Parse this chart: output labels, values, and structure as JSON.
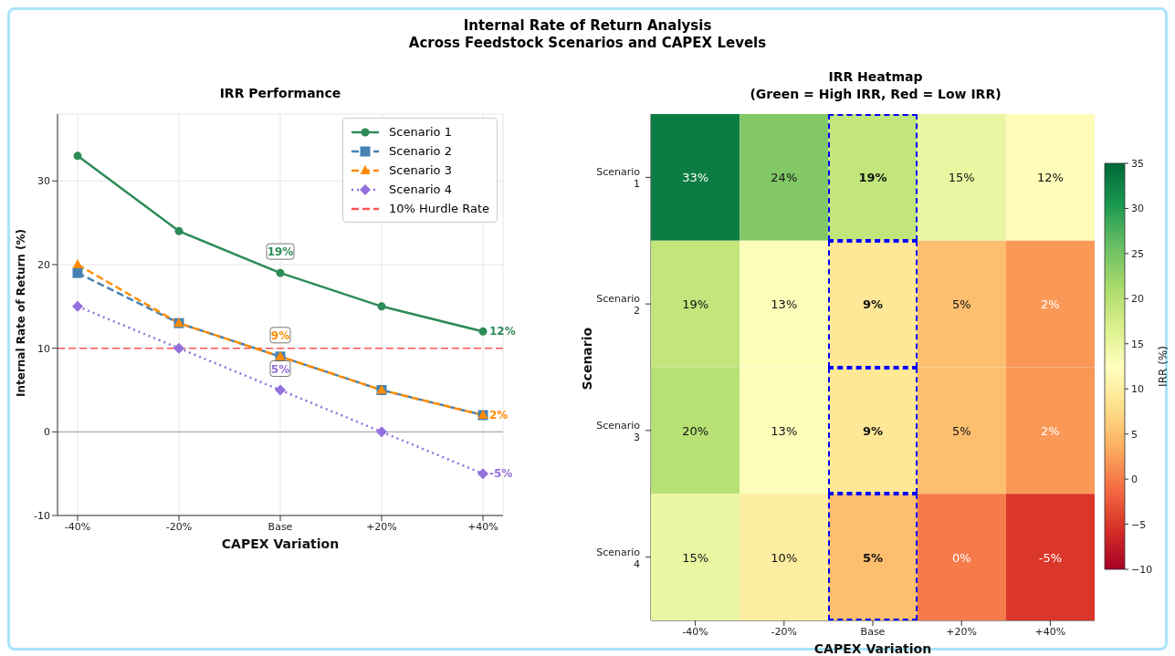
{
  "chart_data": [
    {
      "type": "line",
      "title": "IRR Performance",
      "annotations": [
        "Internal Rate of Return Analysis",
        "Across Feedstock Scenarios and CAPEX Levels"
      ],
      "xlabel": "CAPEX Variation",
      "ylabel": "Internal Rate of Return (%)",
      "categories": [
        "-40%",
        "-20%",
        "Base",
        "+20%",
        "+40%"
      ],
      "series": [
        {
          "name": "Scenario 1",
          "color": "#2e8b57",
          "values": [
            33,
            24,
            19,
            15,
            12
          ],
          "marker": "circle",
          "line_style": "solid",
          "value_labels": [
            null,
            null,
            "19%",
            null,
            "12%"
          ]
        },
        {
          "name": "Scenario 2",
          "color": "#4682b4",
          "values": [
            19,
            13,
            9,
            5,
            2
          ],
          "marker": "square",
          "line_style": "dashed"
        },
        {
          "name": "Scenario 3",
          "color": "#ff8c00",
          "values": [
            20,
            13,
            9,
            5,
            2
          ],
          "marker": "triangle",
          "line_style": "dashed",
          "value_labels": [
            null,
            null,
            "9%",
            null,
            "2%"
          ]
        },
        {
          "name": "Scenario 4",
          "color": "#9370db",
          "values": [
            15,
            10,
            5,
            0,
            -5
          ],
          "marker": "diamond",
          "line_style": "dotted",
          "value_labels": [
            null,
            null,
            "5%",
            null,
            "-5%"
          ]
        }
      ],
      "ylim": [
        -10,
        38
      ],
      "yticks": [
        -10,
        0,
        10,
        20,
        30
      ],
      "grid": true,
      "legend": "top right",
      "ref_lines": [
        {
          "axis": "y",
          "value": 0,
          "color": "#888888",
          "line_style": "solid"
        },
        {
          "axis": "y",
          "value": 10,
          "label": "10% Hurdle Rate",
          "color": "#ff5555",
          "line_style": "dashed"
        }
      ]
    },
    {
      "type": "heatmap",
      "title": "IRR Heatmap",
      "subtitle": "(Green = High IRR, Red = Low IRR)",
      "xlabel": "CAPEX Variation",
      "ylabel": "Scenario",
      "clabel": "IRR (%)",
      "categories": [
        "-40%",
        "-20%",
        "Base",
        "+20%",
        "+40%"
      ],
      "y_categories": [
        "Scenario 1",
        "Scenario 2",
        "Scenario 3",
        "Scenario 4"
      ],
      "cells": [
        [
          33,
          24,
          19,
          15,
          12
        ],
        [
          19,
          13,
          9,
          5,
          2
        ],
        [
          20,
          13,
          9,
          5,
          2
        ],
        [
          15,
          10,
          5,
          0,
          -5
        ]
      ],
      "cell_labels": [
        [
          "33%",
          "24%",
          "19%",
          "15%",
          "12%"
        ],
        [
          "19%",
          "13%",
          "9%",
          "5%",
          "2%"
        ],
        [
          "20%",
          "13%",
          "9%",
          "5%",
          "2%"
        ],
        [
          "15%",
          "10%",
          "5%",
          "0%",
          "-5%"
        ]
      ],
      "clim": [
        -10,
        35
      ],
      "cticks": [
        -10,
        -5,
        0,
        5,
        10,
        15,
        20,
        25,
        30,
        35
      ]
    }
  ]
}
